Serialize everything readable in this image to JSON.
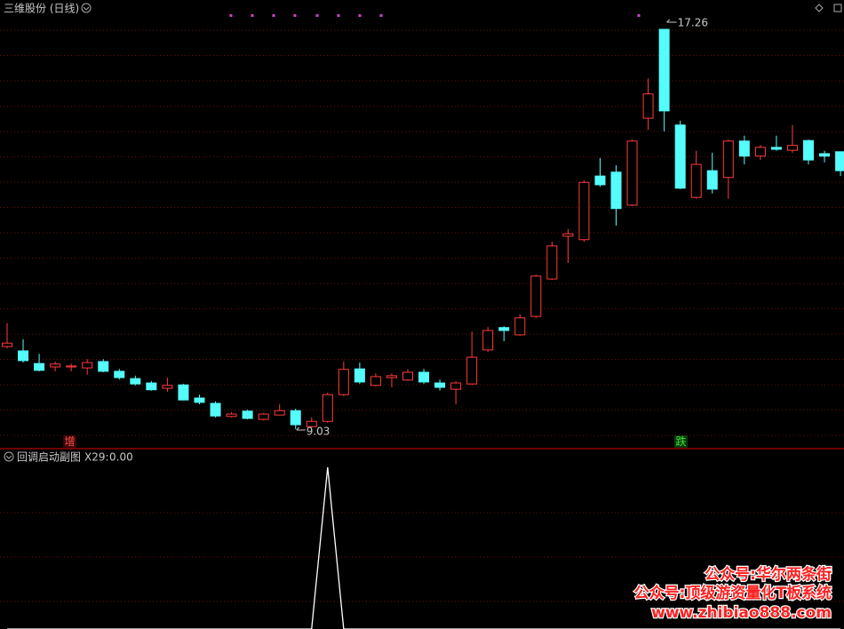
{
  "chart_data": [
    {
      "type": "candlestick",
      "title": "三维股份 (日线)",
      "open": [
        10.73,
        10.64,
        10.38,
        10.31,
        10.31,
        10.29,
        10.42,
        10.22,
        10.07,
        9.98,
        9.87,
        9.94,
        9.67,
        9.56,
        9.29,
        9.4,
        9.23,
        9.32,
        9.41,
        9.08,
        9.19,
        9.74,
        10.27,
        9.93,
        10.09,
        10.04,
        10.2,
        9.98,
        9.85,
        9.96,
        10.66,
        11.12,
        10.97,
        11.35,
        12.12,
        13.0,
        12.93,
        14.24,
        14.32,
        13.64,
        15.43,
        17.26,
        15.29,
        13.8,
        14.35,
        14.21,
        14.96,
        14.65,
        14.83,
        14.77,
        14.97,
        14.7,
        14.74
      ],
      "high": [
        11.21,
        10.88,
        10.58,
        10.42,
        10.38,
        10.47,
        10.47,
        10.27,
        10.13,
        10.02,
        10.09,
        9.96,
        9.74,
        9.6,
        9.38,
        9.43,
        9.36,
        9.54,
        9.45,
        9.27,
        9.78,
        10.42,
        10.4,
        10.18,
        10.18,
        10.26,
        10.27,
        10.05,
        10.02,
        11.04,
        11.13,
        11.15,
        11.39,
        12.21,
        12.89,
        13.15,
        14.15,
        14.61,
        14.46,
        14.99,
        16.25,
        17.26,
        15.38,
        14.76,
        14.72,
        14.99,
        15.07,
        14.88,
        15.07,
        15.29,
        14.99,
        14.76,
        14.74
      ],
      "low": [
        10.69,
        10.4,
        10.22,
        10.22,
        10.22,
        10.15,
        10.2,
        10.05,
        9.93,
        9.82,
        9.8,
        9.62,
        9.54,
        9.27,
        9.27,
        9.23,
        9.21,
        9.32,
        9.03,
        9.05,
        9.16,
        9.71,
        9.96,
        9.91,
        9.89,
        10.02,
        9.96,
        9.82,
        9.54,
        9.94,
        10.62,
        10.84,
        10.95,
        11.32,
        12.1,
        12.45,
        12.89,
        14.02,
        13.22,
        13.62,
        15.19,
        15.16,
        13.97,
        13.77,
        13.88,
        13.77,
        14.48,
        14.57,
        14.76,
        14.72,
        14.48,
        14.52,
        14.24
      ],
      "close": [
        10.8,
        10.44,
        10.24,
        10.37,
        10.33,
        10.4,
        10.22,
        10.09,
        9.96,
        9.84,
        9.93,
        9.63,
        9.58,
        9.3,
        9.34,
        9.25,
        9.34,
        9.41,
        9.12,
        9.19,
        9.74,
        10.26,
        10.0,
        10.11,
        10.13,
        10.2,
        10.0,
        9.89,
        9.98,
        10.51,
        11.06,
        11.06,
        11.32,
        12.18,
        12.8,
        13.05,
        14.11,
        14.06,
        13.57,
        14.96,
        15.93,
        15.58,
        13.99,
        14.48,
        13.97,
        14.96,
        14.65,
        14.83,
        14.79,
        14.87,
        14.57,
        14.65,
        14.35
      ],
      "up_color": "#ff3b3b",
      "down_color": "#54fcfc",
      "signals": [
        "增",
        "跌"
      ]
    },
    {
      "type": "line",
      "title": "回调启动副图",
      "series": [
        {
          "name": "X29:",
          "color": "#ffffff",
          "values": [
            0,
            0,
            0,
            0,
            0,
            0,
            0,
            0,
            0,
            0,
            0,
            0,
            0,
            0,
            0,
            0,
            0,
            0,
            0,
            0,
            1,
            0,
            0,
            0,
            0,
            0,
            0,
            0,
            0,
            0,
            0,
            0,
            0,
            0,
            0,
            0,
            0,
            0,
            0,
            0,
            0,
            0,
            0,
            0,
            0,
            0,
            0,
            0,
            0,
            0,
            0,
            0,
            0
          ],
          "readout": {
            "value": 0,
            "label": "0.00"
          }
        }
      ]
    }
  ],
  "watermark": [
    "公众号:华尔两条街",
    "公众号:顶级游资量化T板系统",
    "www.zhibiao888.com"
  ]
}
